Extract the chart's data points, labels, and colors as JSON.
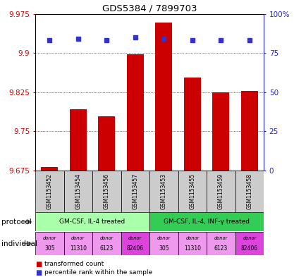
{
  "title": "GDS5384 / 7899703",
  "samples": [
    "GSM1153452",
    "GSM1153454",
    "GSM1153456",
    "GSM1153457",
    "GSM1153453",
    "GSM1153455",
    "GSM1153459",
    "GSM1153458"
  ],
  "bar_values": [
    9.682,
    9.792,
    9.778,
    9.897,
    9.958,
    9.853,
    9.825,
    9.827
  ],
  "percentile_values": [
    83,
    84,
    83,
    85,
    84,
    83,
    83,
    83
  ],
  "bar_color": "#cc0000",
  "dot_color": "#3333cc",
  "ylim_left": [
    9.675,
    9.975
  ],
  "ylim_right": [
    0,
    100
  ],
  "yticks_left": [
    9.675,
    9.75,
    9.825,
    9.9,
    9.975
  ],
  "ytick_labels_left": [
    "9.675",
    "9.75",
    "9.825",
    "9.9",
    "9.975"
  ],
  "yticks_right": [
    0,
    25,
    50,
    75,
    100
  ],
  "ytick_labels_right": [
    "0",
    "25",
    "50",
    "75",
    "100%"
  ],
  "protocol_groups": [
    {
      "label": "GM-CSF, IL-4 treated",
      "start": 0,
      "end": 3,
      "color": "#aaffaa"
    },
    {
      "label": "GM-CSF, IL-4, INF-γ treated",
      "start": 4,
      "end": 7,
      "color": "#33cc55"
    }
  ],
  "individuals": [
    "305",
    "11310",
    "6123",
    "82406",
    "305",
    "11310",
    "6123",
    "82406"
  ],
  "individual_colors": [
    "#ee99ee",
    "#ee99ee",
    "#ee99ee",
    "#dd44dd",
    "#ee99ee",
    "#ee99ee",
    "#ee99ee",
    "#dd44dd"
  ],
  "grid_values": [
    9.75,
    9.825,
    9.9
  ],
  "bar_bottom": 9.675
}
